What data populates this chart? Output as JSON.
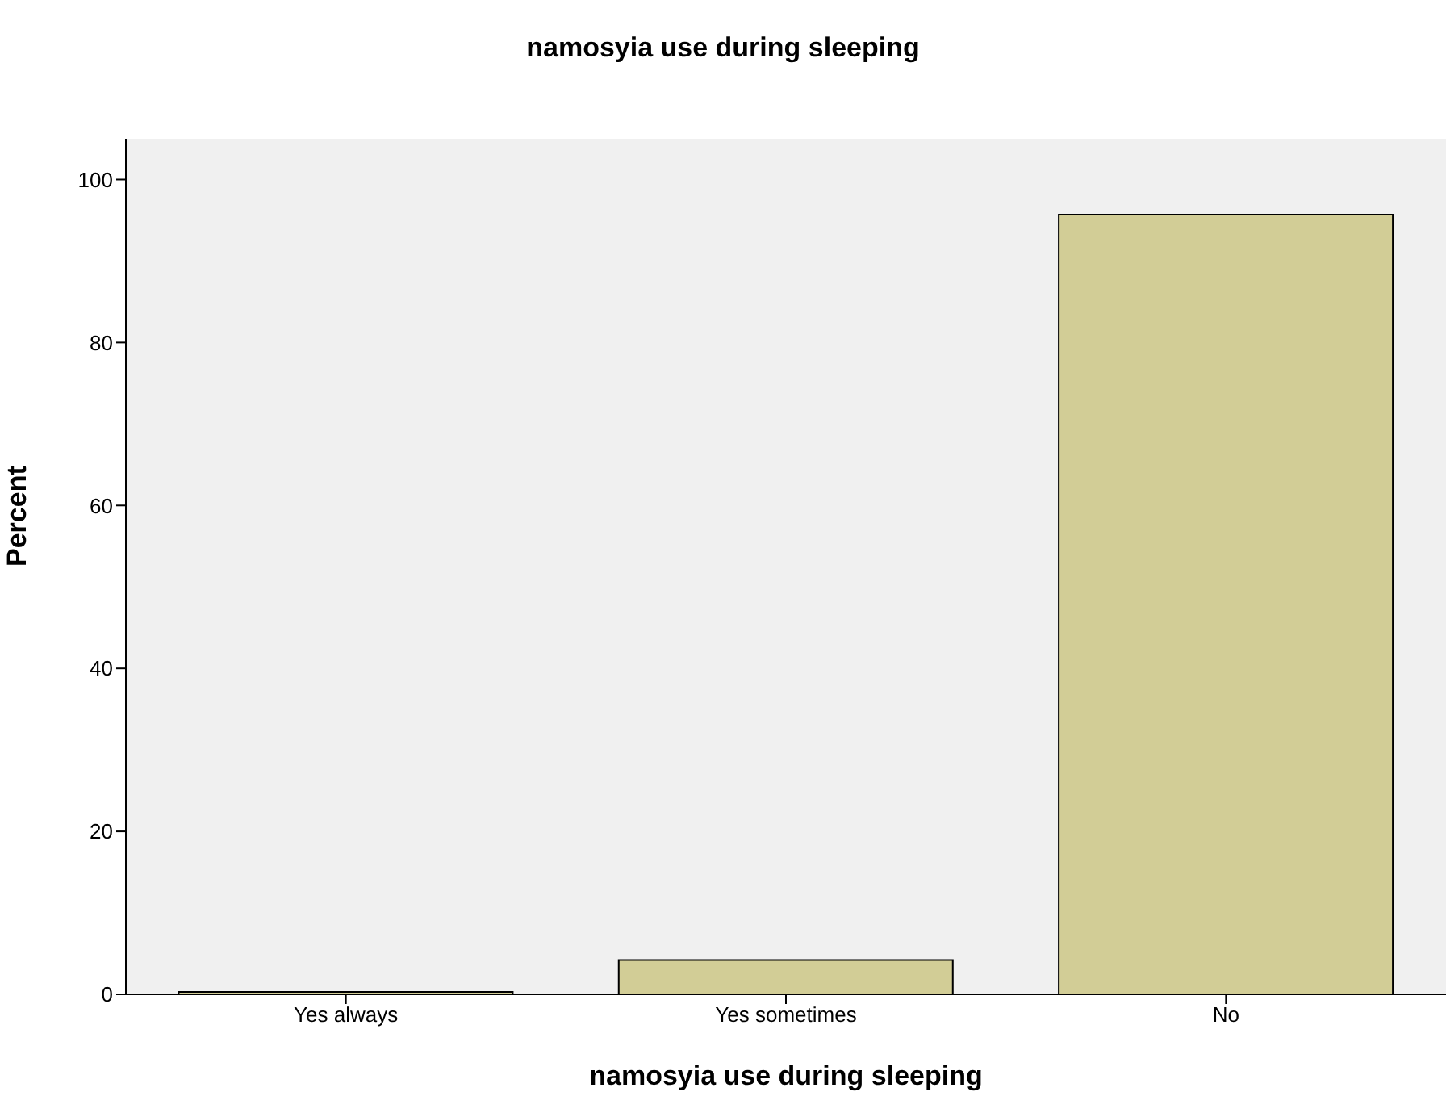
{
  "chart_data": {
    "type": "bar",
    "title": "namosyia use during sleeping",
    "xlabel": "namosyia use during sleeping",
    "ylabel": "Percent",
    "categories": [
      "Yes always",
      "Yes sometimes",
      "No"
    ],
    "values": [
      0.3,
      4.2,
      95.7
    ],
    "color": "#d2cd96",
    "ylim": [
      0,
      105
    ],
    "yticks": [
      0,
      20,
      40,
      60,
      80,
      100
    ],
    "grid": false,
    "legend": false
  }
}
